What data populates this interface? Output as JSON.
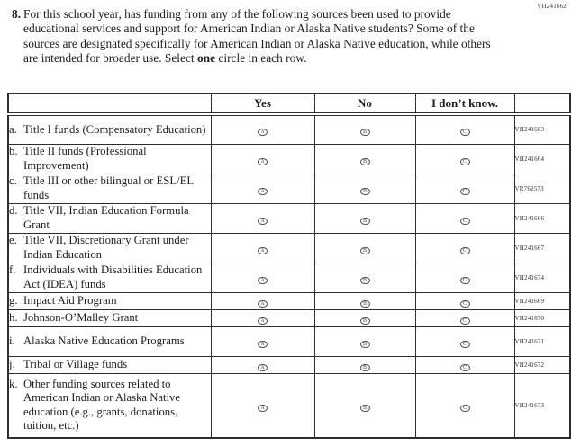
{
  "page_code": "VH241662",
  "question": {
    "number": "8.",
    "text_before_bold": "For this school year, has funding from any of the following sources been used to provide educational services and support for American Indian or Alaska Native students? Some of the sources are designated specifically for American Indian or Alaska Native education, while others are intended for broader use. Select ",
    "bold_word": "one",
    "text_after_bold": " circle in each row."
  },
  "table": {
    "headers": {
      "yes": "Yes",
      "no": "No",
      "dont_know": "I don’t know."
    },
    "options": [
      {
        "name": "yes",
        "letter": "A"
      },
      {
        "name": "no",
        "letter": "B"
      },
      {
        "name": "dont-know",
        "letter": "C"
      }
    ],
    "rows": [
      {
        "letter": "a.",
        "label": "Title I funds (Compensatory Education)",
        "code": "VH241663"
      },
      {
        "letter": "b.",
        "label": "Title II funds (Professional Improvement)",
        "code": "VH241664"
      },
      {
        "letter": "c.",
        "label": "Title III or other bilingual or ESL/EL funds",
        "code": "VR762573"
      },
      {
        "letter": "d.",
        "label": "Title VII, Indian Education Formula Grant",
        "code": "VH241666"
      },
      {
        "letter": "e.",
        "label": "Title VII, Discretionary Grant under Indian Education",
        "code": "VH241667"
      },
      {
        "letter": "f.",
        "label": "Individuals with Disabilities Education Act (IDEA) funds",
        "code": "VH241674"
      },
      {
        "letter": "g.",
        "label": "Impact Aid Program",
        "code": "VH241669"
      },
      {
        "letter": "h.",
        "label": "Johnson-O’Malley Grant",
        "code": "VH241670"
      },
      {
        "letter": "i.",
        "label": "Alaska Native Education Programs",
        "code": "VH241671"
      },
      {
        "letter": "j.",
        "label": "Tribal or Village funds",
        "code": "VH241672"
      },
      {
        "letter": "k.",
        "label": "Other funding sources related to American Indian or Alaska Native education (e.g., grants, donations, tuition, etc.)",
        "code": "VH241673"
      }
    ]
  }
}
